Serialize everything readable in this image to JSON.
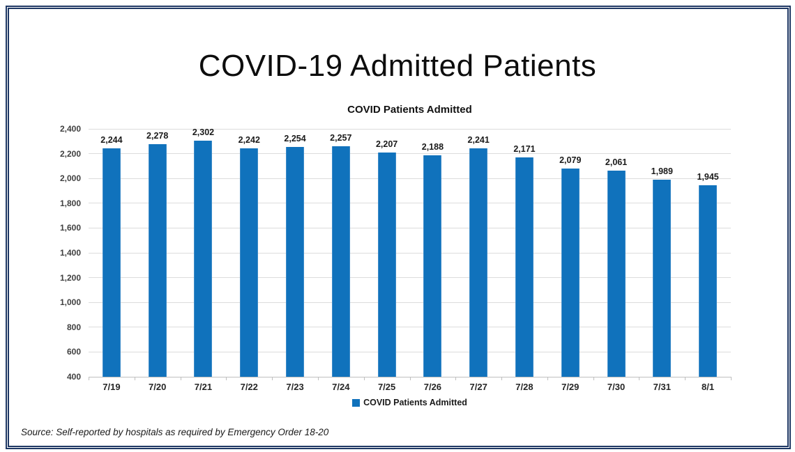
{
  "page": {
    "title": "COVID-19 Admitted Patients",
    "frame_border_color": "#1f3864"
  },
  "chart_data": {
    "type": "bar",
    "title": "COVID Patients Admitted",
    "categories": [
      "7/19",
      "7/20",
      "7/21",
      "7/22",
      "7/23",
      "7/24",
      "7/25",
      "7/26",
      "7/27",
      "7/28",
      "7/29",
      "7/30",
      "7/31",
      "8/1"
    ],
    "series": [
      {
        "name": "COVID Patients Admitted",
        "values": [
          2244,
          2278,
          2302,
          2242,
          2254,
          2257,
          2207,
          2188,
          2241,
          2171,
          2079,
          2061,
          1989,
          1945
        ]
      }
    ],
    "data_labels": [
      "2,244",
      "2,278",
      "2,302",
      "2,242",
      "2,254",
      "2,257",
      "2,207",
      "2,188",
      "2,241",
      "2,171",
      "2,079",
      "2,061",
      "1,989",
      "1,945"
    ],
    "xlabel": "",
    "ylabel": "",
    "ylim": [
      400,
      2400
    ],
    "ytick_step": 200,
    "yticks": [
      "2,400",
      "2,200",
      "2,000",
      "1,800",
      "1,600",
      "1,400",
      "1,200",
      "1,000",
      "800",
      "600",
      "400"
    ],
    "grid": true,
    "gridline_color": "#dcdcdc",
    "axis_line_color": "#bfbfbf",
    "bar_color": "#1072bc",
    "legend_position": "bottom"
  },
  "legend": {
    "label": "COVID Patients Admitted",
    "swatch_color": "#1072bc"
  },
  "footer": {
    "source": "Source: Self-reported by hospitals as required by Emergency Order 18-20"
  }
}
